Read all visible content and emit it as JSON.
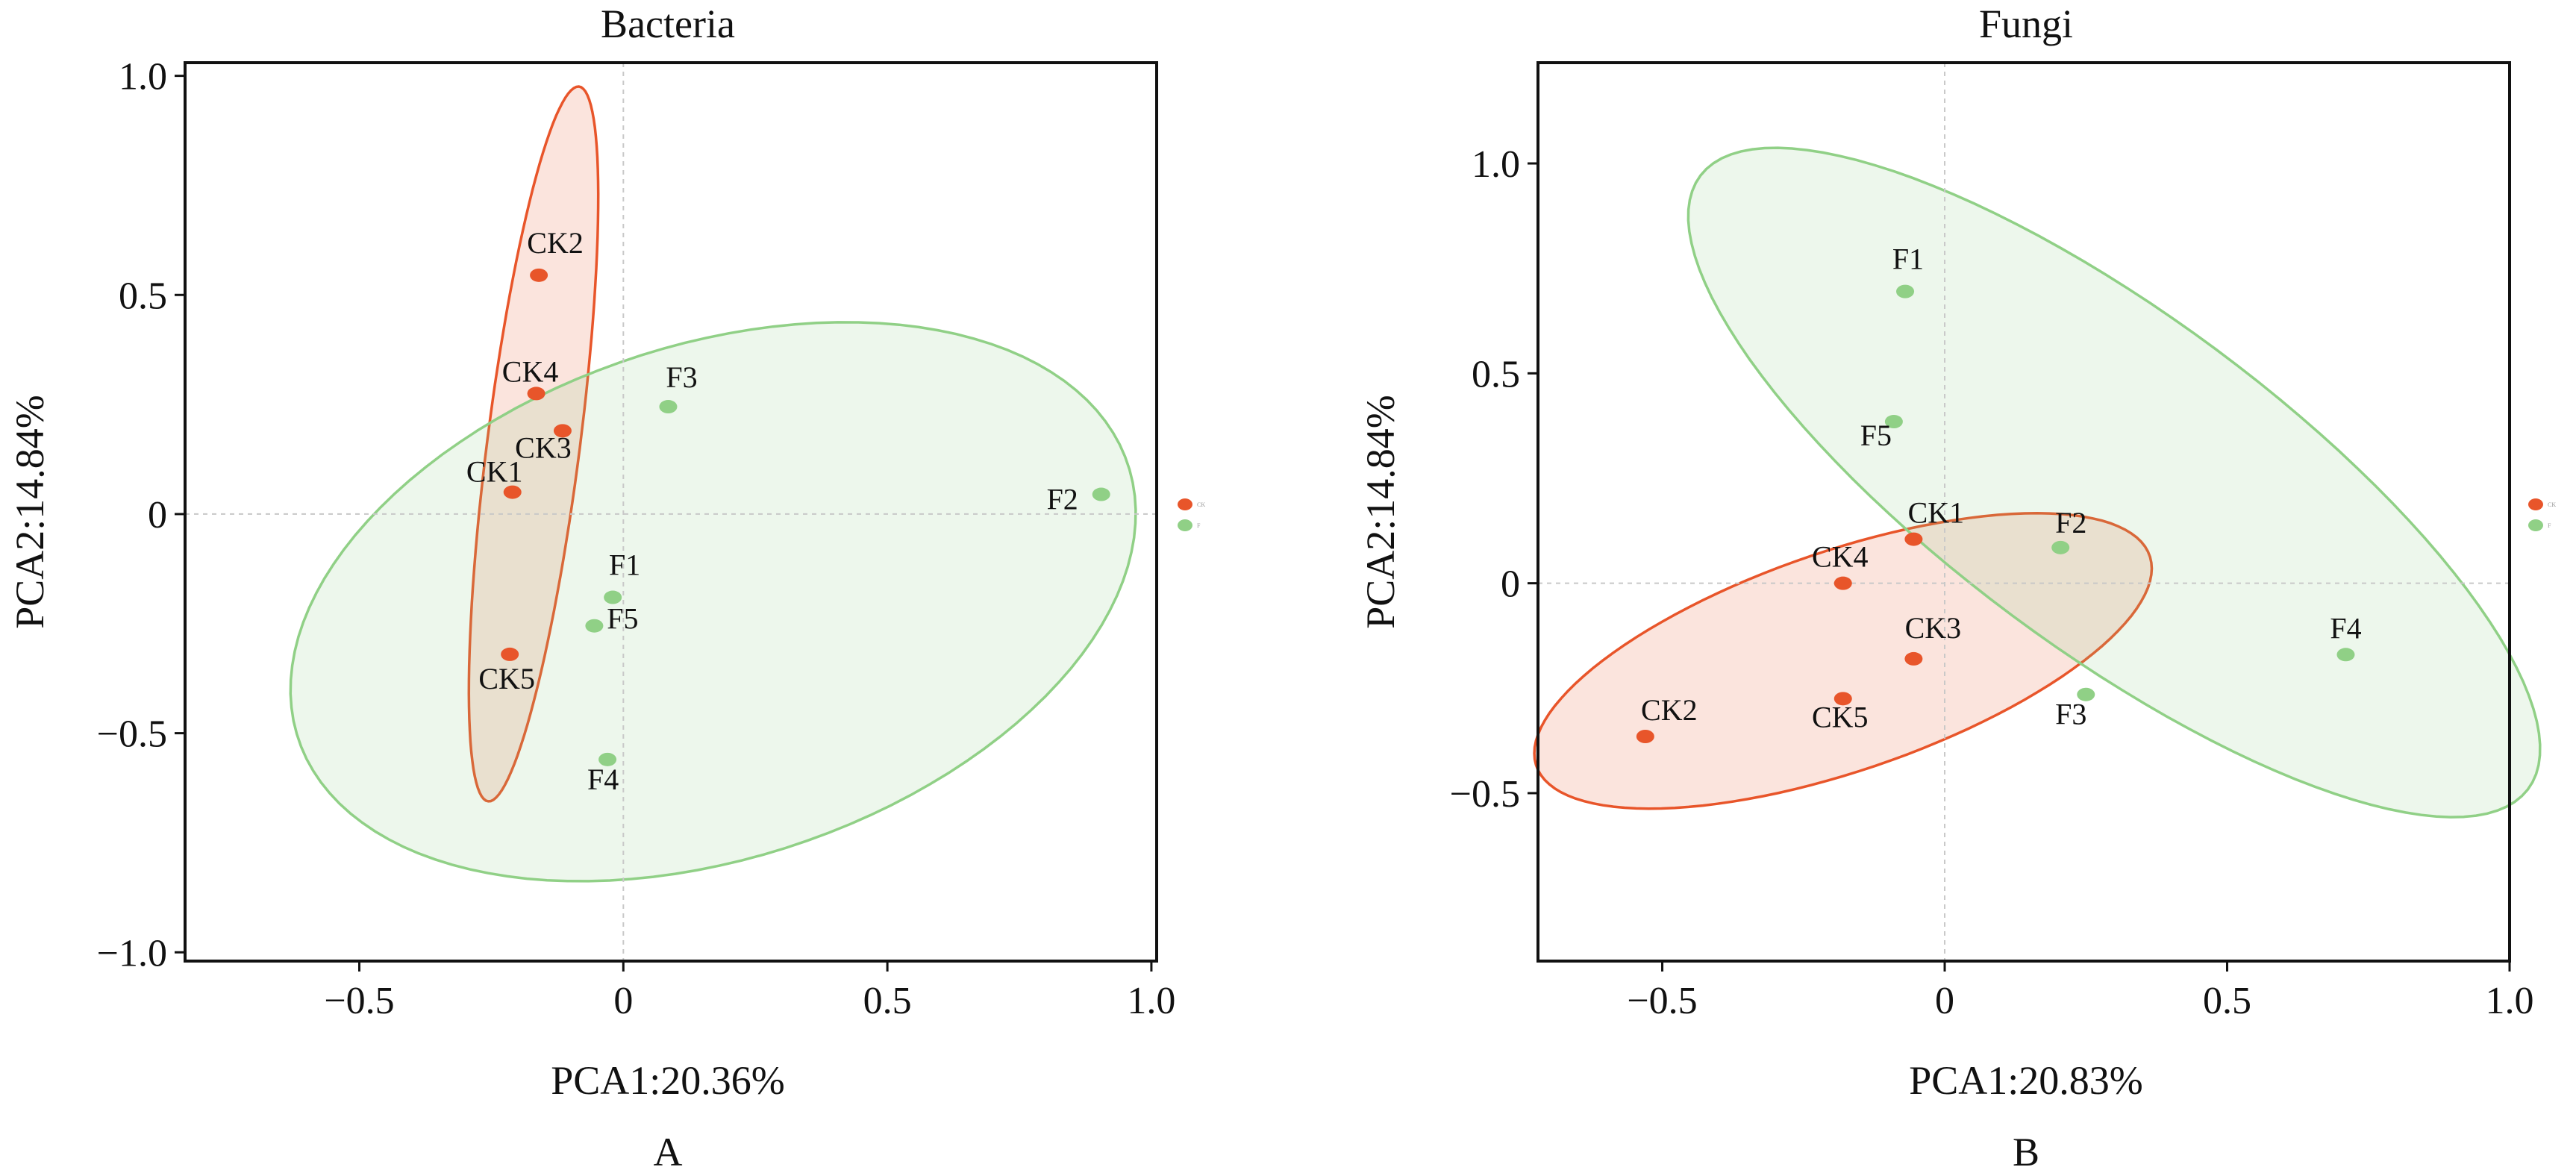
{
  "chart_data": [
    {
      "type": "scatter",
      "title": "Bacteria",
      "xlabel": "PCA1:20.36%",
      "ylabel": "PCA2:14.84%",
      "panel": "A",
      "xlim": [
        -0.83,
        1.01
      ],
      "ylim": [
        -1.02,
        1.03
      ],
      "xticks": [
        -0.5,
        0,
        0.5,
        1.0
      ],
      "xtick_labels": [
        "−0.5",
        "0",
        "0.5",
        "1.0"
      ],
      "yticks": [
        -1.0,
        -0.5,
        0,
        0.5,
        1.0
      ],
      "ytick_labels": [
        "−1.0",
        "−0.5",
        "0",
        "0.5",
        "1.0"
      ],
      "grid": "dashed lines at x=0 and y=0",
      "legend_position": "right",
      "series": [
        {
          "name": "CK",
          "color": "#e8552a",
          "ellipse": {
            "center": [
              -0.17,
              0.16
            ],
            "semi_major": 0.82,
            "semi_minor": 0.088,
            "angle_deg": 84
          },
          "points": [
            {
              "label": "CK2",
              "x": -0.16,
              "y": 0.545
            },
            {
              "label": "CK4",
              "x": -0.165,
              "y": 0.275
            },
            {
              "label": "CK3",
              "x": -0.115,
              "y": 0.19
            },
            {
              "label": "CK1",
              "x": -0.21,
              "y": 0.05
            },
            {
              "label": "CK5",
              "x": -0.215,
              "y": -0.32
            }
          ]
        },
        {
          "name": "F",
          "color": "#90d086",
          "ellipse": {
            "center": [
              0.17,
              -0.2
            ],
            "semi_major": 0.85,
            "semi_minor": 0.57,
            "angle_deg": 27
          },
          "points": [
            {
              "label": "F3",
              "x": 0.085,
              "y": 0.245
            },
            {
              "label": "F2",
              "x": 0.905,
              "y": 0.045
            },
            {
              "label": "F1",
              "x": -0.02,
              "y": -0.19
            },
            {
              "label": "F5",
              "x": -0.055,
              "y": -0.255
            },
            {
              "label": "F4",
              "x": -0.03,
              "y": -0.56
            }
          ]
        }
      ]
    },
    {
      "type": "scatter",
      "title": "Fungi",
      "xlabel": "PCA1:20.83%",
      "ylabel": "PCA2:14.84%",
      "panel": "B",
      "xlim": [
        -0.72,
        1.0
      ],
      "ylim": [
        -0.9,
        1.24
      ],
      "xticks": [
        -0.5,
        0,
        0.5,
        1.0
      ],
      "xtick_labels": [
        "−0.5",
        "0",
        "0.5",
        "1.0"
      ],
      "yticks": [
        -0.5,
        0,
        0.5,
        1.0
      ],
      "ytick_labels": [
        "−0.5",
        "0",
        "0.5",
        "1.0"
      ],
      "grid": "dashed lines at x=0 and y=0",
      "legend_position": "right",
      "series": [
        {
          "name": "CK",
          "color": "#e8552a",
          "ellipse": {
            "center": [
              -0.18,
              -0.185
            ],
            "semi_major": 0.6,
            "semi_minor": 0.25,
            "angle_deg": 27
          },
          "points": [
            {
              "label": "CK1",
              "x": -0.055,
              "y": 0.105
            },
            {
              "label": "CK4",
              "x": -0.18,
              "y": 0.0
            },
            {
              "label": "CK3",
              "x": -0.055,
              "y": -0.18
            },
            {
              "label": "CK5",
              "x": -0.18,
              "y": -0.275
            },
            {
              "label": "CK2",
              "x": -0.53,
              "y": -0.365
            }
          ]
        },
        {
          "name": "F",
          "color": "#90d086",
          "ellipse": {
            "center": [
              0.3,
              0.24
            ],
            "semi_major": 1.04,
            "semi_minor": 0.35,
            "angle_deg": -47
          },
          "points": [
            {
              "label": "F1",
              "x": -0.07,
              "y": 0.695
            },
            {
              "label": "F5",
              "x": -0.09,
              "y": 0.385
            },
            {
              "label": "F2",
              "x": 0.205,
              "y": 0.085
            },
            {
              "label": "F4",
              "x": 0.71,
              "y": -0.17
            },
            {
              "label": "F3",
              "x": 0.25,
              "y": -0.265
            }
          ]
        }
      ]
    }
  ]
}
